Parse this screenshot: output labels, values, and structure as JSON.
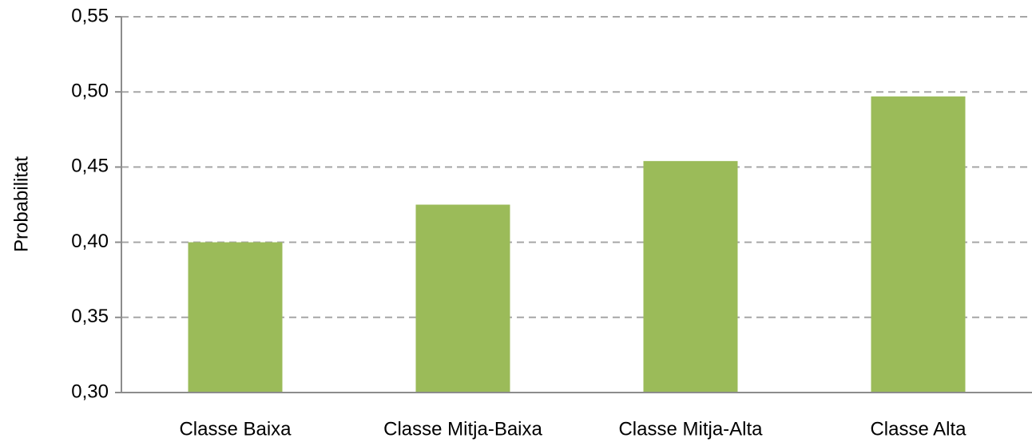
{
  "chart_data": {
    "type": "bar",
    "y_label": "Probabilitat",
    "categories": [
      "Classe Baixa",
      "Classe Mitja-Baixa",
      "Classe Mitja-Alta",
      "Classe Alta"
    ],
    "values": [
      0.4,
      0.425,
      0.454,
      0.497
    ],
    "color": "#9bbb59",
    "ylim": [
      0.3,
      0.55
    ],
    "yticks": [
      {
        "value": 0.3,
        "label": "0,30"
      },
      {
        "value": 0.35,
        "label": "0,35"
      },
      {
        "value": 0.4,
        "label": "0,40"
      },
      {
        "value": 0.45,
        "label": "0,45"
      },
      {
        "value": 0.5,
        "label": "0,50"
      },
      {
        "value": 0.55,
        "label": "0,55"
      }
    ],
    "grid": true
  }
}
